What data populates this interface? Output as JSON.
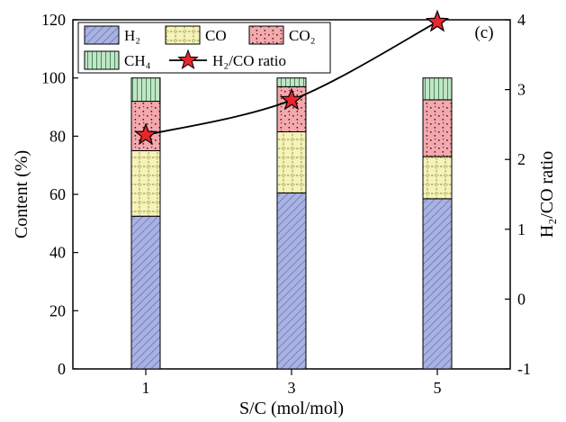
{
  "chart_data": {
    "type": "bar",
    "subtype": "stacked-bar-with-line",
    "panel_label": "(c)",
    "xlabel": "S/C (mol/mol)",
    "ylabel": "Content (%)",
    "y2label": "H₂/CO ratio",
    "categories": [
      "1",
      "3",
      "5"
    ],
    "ylim": [
      0,
      120
    ],
    "yticks": [
      "0",
      "20",
      "40",
      "60",
      "80",
      "100",
      "120"
    ],
    "y2lim": [
      -1,
      4
    ],
    "y2ticks": [
      "-1",
      "0",
      "1",
      "2",
      "3",
      "4"
    ],
    "series": [
      {
        "name": "H₂",
        "values": [
          52.5,
          60.5,
          58.5
        ],
        "color": "#a9b2e0",
        "pattern": "diagonal-hatch"
      },
      {
        "name": "CO",
        "values": [
          22.5,
          21.0,
          14.5
        ],
        "color": "#f5f3b8",
        "pattern": "dotted-grid"
      },
      {
        "name": "CO₂",
        "values": [
          17.0,
          15.5,
          19.5
        ],
        "color": "#f5a8ad",
        "pattern": "dots"
      },
      {
        "name": "CH₄",
        "values": [
          8.0,
          3.0,
          7.5
        ],
        "color": "#bfe6c6",
        "pattern": "vertical-lines"
      }
    ],
    "line_series": {
      "name": "H₂/CO ratio",
      "axis": "right",
      "values": [
        2.35,
        2.85,
        3.97
      ],
      "marker": "star",
      "marker_color": "#e8262b",
      "line_color": "#000000"
    },
    "legend": {
      "placement": "top-left",
      "entries": [
        {
          "label": "H₂"
        },
        {
          "label": "CO"
        },
        {
          "label": "CO₂"
        },
        {
          "label": "CH₄"
        },
        {
          "label": "H₂/CO ratio"
        }
      ]
    },
    "grid": false
  }
}
